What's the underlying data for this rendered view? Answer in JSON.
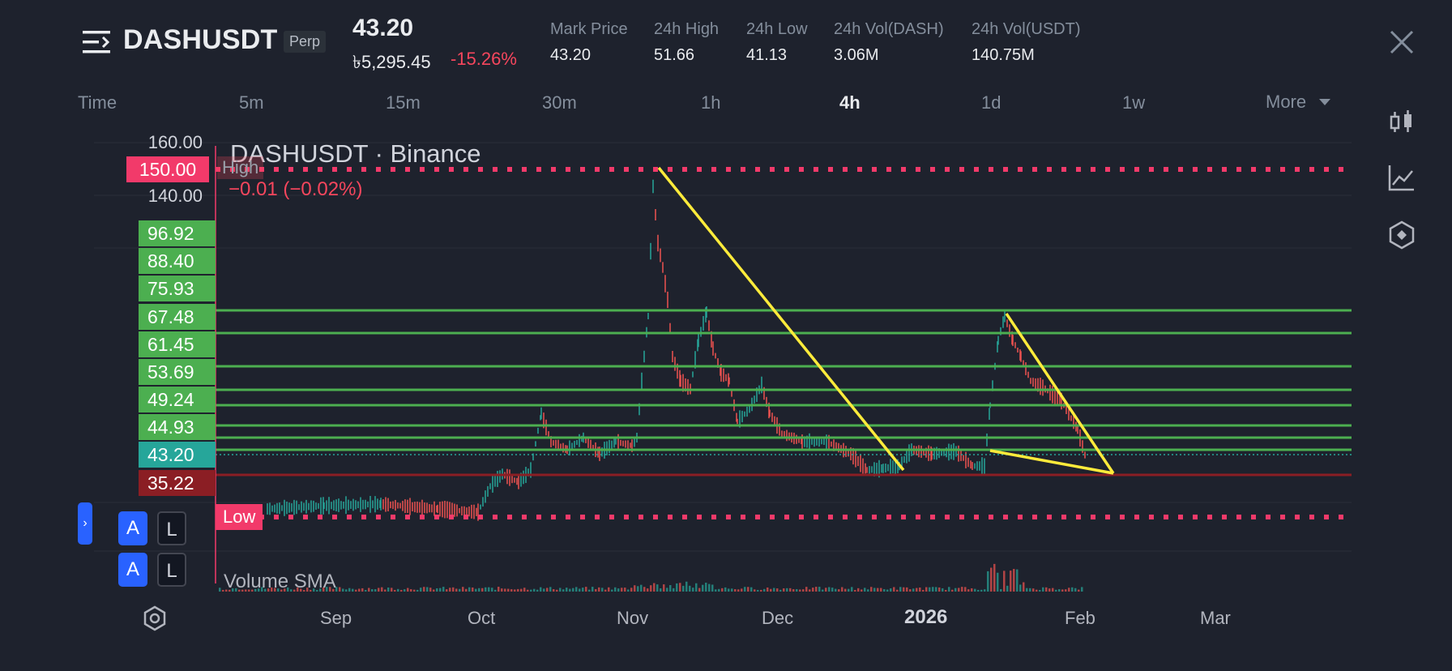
{
  "header": {
    "symbol": "DASHUSDT",
    "contract_type": "Perp",
    "last_price": "43.20",
    "local_price": "৳5,295.45",
    "change_percent": "-15.26%",
    "stats": [
      {
        "label": "Mark Price",
        "value": "43.20"
      },
      {
        "label": "24h High",
        "value": "51.66"
      },
      {
        "label": "24h Low",
        "value": "41.13"
      },
      {
        "label": "24h Vol(DASH)",
        "value": "3.06M"
      },
      {
        "label": "24h Vol(USDT)",
        "value": "140.75M"
      }
    ]
  },
  "intervals": {
    "time_label": "Time",
    "items": [
      "5m",
      "15m",
      "30m",
      "1h",
      "4h",
      "1d",
      "1w"
    ],
    "active": "4h",
    "more_label": "More"
  },
  "chart": {
    "title": "DASHUSDT · Binance",
    "change_text": "−0.01 (−0.02%)",
    "high_label": "High",
    "low_label": "Low",
    "high_value": "150.00",
    "axis_prices": [
      "160.00",
      "140.00"
    ],
    "level_badges": [
      "96.92",
      "88.40",
      "75.93",
      "67.48",
      "61.45",
      "53.69",
      "49.24",
      "44.93"
    ],
    "current_price_badge": "43.20",
    "support_badge": "35.22",
    "volume_label": "Volume SMA",
    "months": [
      "Sep",
      "Oct",
      "Nov",
      "Dec",
      "2026",
      "Feb",
      "Mar"
    ],
    "colors": {
      "background": "#1e222d",
      "up": "#26a69a",
      "down": "#ef5350",
      "level_line": "#4caf50",
      "trendline": "#ffeb3b",
      "high_low_line": "#f23a6a",
      "support_line": "#8b1e24"
    }
  },
  "buttons": {
    "auto_label": "A",
    "log_label": "L"
  },
  "icons": {
    "menu": "menu-icon",
    "close": "close-icon",
    "toolbar": [
      "candlestick-icon",
      "line-chart-icon",
      "indicator-icon"
    ],
    "settings": "settings-icon"
  }
}
